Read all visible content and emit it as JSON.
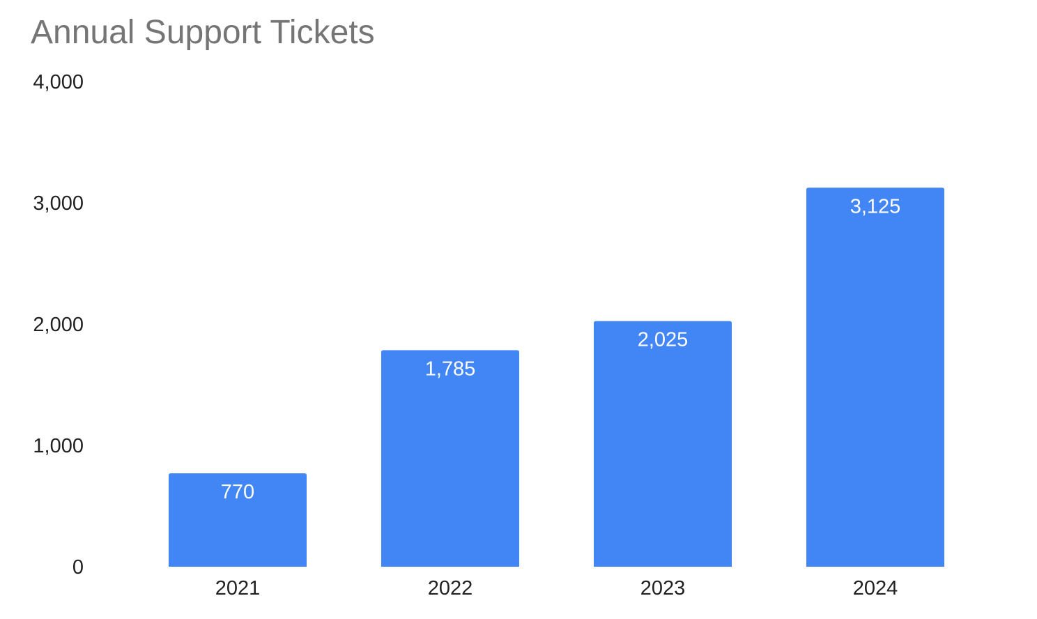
{
  "chart_data": {
    "type": "bar",
    "title": "Annual Support Tickets",
    "xlabel": "",
    "ylabel": "",
    "categories": [
      "2021",
      "2022",
      "2023",
      "2024"
    ],
    "values": [
      770,
      1785,
      2025,
      3125
    ],
    "data_labels": [
      "770",
      "1,785",
      "2,025",
      "3,125"
    ],
    "ylim": [
      0,
      4000
    ],
    "yticks": [
      0,
      1000,
      2000,
      3000,
      4000
    ],
    "ytick_labels": [
      "0",
      "1,000",
      "2,000",
      "3,000",
      "4,000"
    ],
    "grid": false,
    "legend": "none",
    "colors": {
      "bar": "#4285f4",
      "title": "#757575",
      "axis_text": "#222222",
      "data_label": "#ffffff"
    }
  }
}
